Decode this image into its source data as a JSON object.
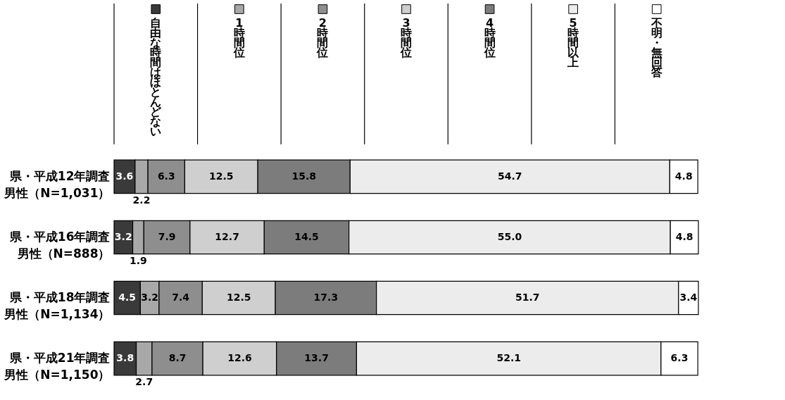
{
  "chart_data": {
    "type": "bar",
    "orientation": "horizontal",
    "stacked": true,
    "legend": "top",
    "categories": [
      "県・平成12年調査男性（N=1,031）",
      "県・平成16年調査男性（N=888）",
      "県・平成18年調査男性（N=1,134）",
      "県・平成21年調査男性（N=1,150）"
    ],
    "series": [
      {
        "name": "自由な時間はほとんどない",
        "color": "#3a3a3a",
        "values": [
          3.6,
          3.2,
          4.5,
          3.8
        ],
        "value_labels": [
          "3.6",
          "3.2",
          "4.5",
          "3.8"
        ]
      },
      {
        "name": "1時間位",
        "color": "#a8a8a8",
        "values": [
          2.2,
          1.9,
          3.2,
          2.7
        ],
        "value_labels": [
          "2.2",
          "1.9",
          "3.2",
          "2.7"
        ]
      },
      {
        "name": "2時間位",
        "color": "#8e8e8e",
        "values": [
          6.3,
          7.9,
          7.4,
          8.7
        ],
        "value_labels": [
          "6.3",
          "7.9",
          "7.4",
          "8.7"
        ]
      },
      {
        "name": "3時間位",
        "color": "#cfcfcf",
        "values": [
          12.5,
          12.7,
          12.5,
          12.6
        ],
        "value_labels": [
          "12.5",
          "12.7",
          "12.5",
          "12.6"
        ]
      },
      {
        "name": "4時間位",
        "color": "#7c7c7c",
        "values": [
          15.8,
          14.5,
          17.3,
          13.7
        ],
        "value_labels": [
          "15.8",
          "14.5",
          "17.3",
          "13.7"
        ]
      },
      {
        "name": "5時間以上",
        "color": "#ececec",
        "values": [
          54.7,
          55.0,
          51.7,
          52.1
        ],
        "value_labels": [
          "54.7",
          "55.0",
          "51.7",
          "52.1"
        ]
      },
      {
        "name": "不明・無回答",
        "color": "#ffffff",
        "values": [
          4.8,
          4.8,
          3.4,
          6.3
        ],
        "value_labels": [
          "4.8",
          "4.8",
          "3.4",
          "6.3"
        ]
      }
    ]
  }
}
